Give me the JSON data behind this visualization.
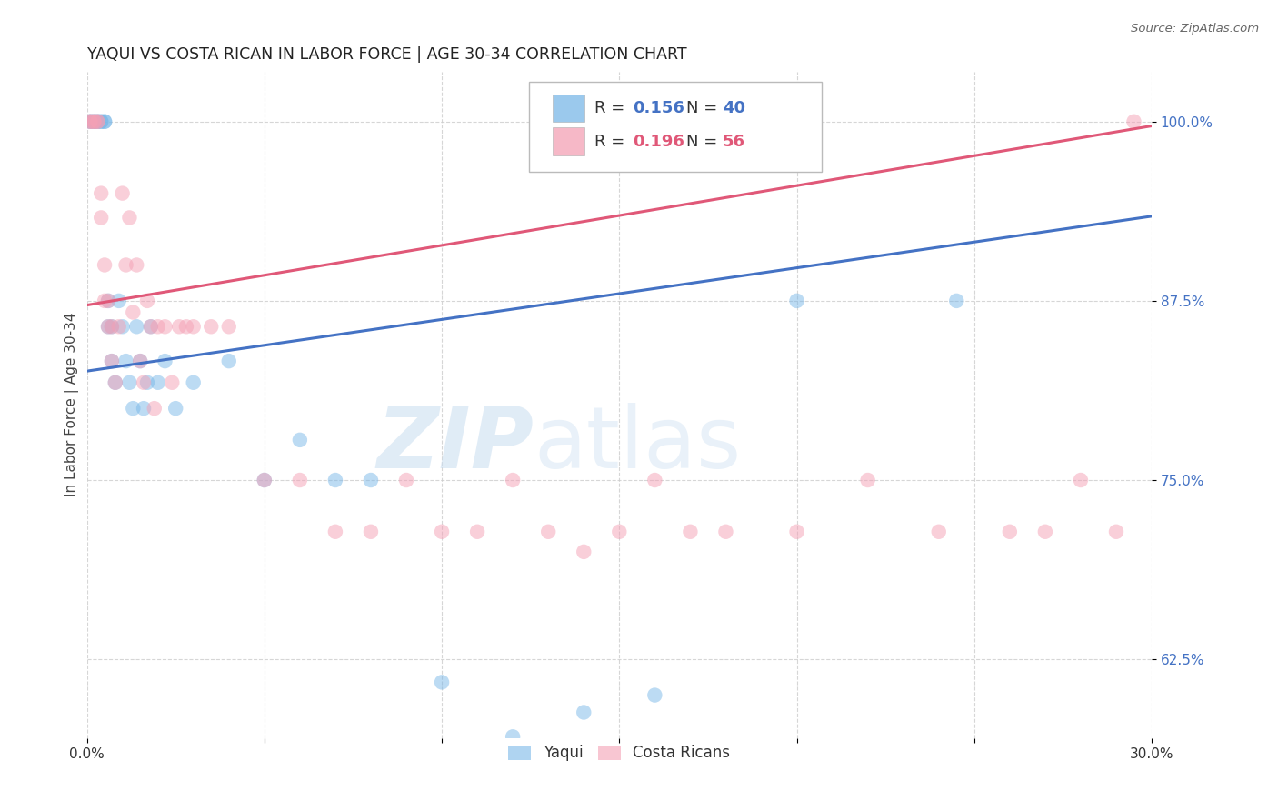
{
  "title": "YAQUI VS COSTA RICAN IN LABOR FORCE | AGE 30-34 CORRELATION CHART",
  "source": "Source: ZipAtlas.com",
  "ylabel_label": "In Labor Force | Age 30-34",
  "x_min": 0.0,
  "x_max": 0.3,
  "y_min": 0.57,
  "y_max": 1.035,
  "y_ticks": [
    0.625,
    0.75,
    0.875,
    1.0
  ],
  "y_tick_labels": [
    "62.5%",
    "75.0%",
    "87.5%",
    "100.0%"
  ],
  "yaqui_R": 0.156,
  "yaqui_N": 40,
  "costarican_R": 0.196,
  "costarican_N": 56,
  "yaqui_color": "#7ab8e8",
  "costarican_color": "#f4a0b5",
  "line_yaqui_color": "#4472c4",
  "line_costarican_color": "#e05878",
  "legend_label_yaqui": "Yaqui",
  "legend_label_costarican": "Costa Ricans",
  "yaqui_line_x0": 0.0,
  "yaqui_line_y0": 0.826,
  "yaqui_line_x1": 0.3,
  "yaqui_line_y1": 0.934,
  "cr_line_x0": 0.0,
  "cr_line_y0": 0.872,
  "cr_line_x1": 0.3,
  "cr_line_y1": 0.997,
  "yaqui_x": [
    0.001,
    0.001,
    0.002,
    0.002,
    0.003,
    0.003,
    0.004,
    0.004,
    0.005,
    0.005,
    0.006,
    0.006,
    0.007,
    0.007,
    0.008,
    0.009,
    0.01,
    0.011,
    0.012,
    0.013,
    0.014,
    0.015,
    0.016,
    0.017,
    0.018,
    0.02,
    0.022,
    0.025,
    0.03,
    0.04,
    0.05,
    0.06,
    0.07,
    0.08,
    0.1,
    0.12,
    0.14,
    0.16,
    0.2,
    0.245
  ],
  "yaqui_y": [
    1.0,
    1.0,
    1.0,
    1.0,
    1.0,
    1.0,
    1.0,
    1.0,
    1.0,
    1.0,
    0.875,
    0.857,
    0.857,
    0.833,
    0.818,
    0.875,
    0.857,
    0.833,
    0.818,
    0.8,
    0.857,
    0.833,
    0.8,
    0.818,
    0.857,
    0.818,
    0.833,
    0.8,
    0.818,
    0.833,
    0.75,
    0.778,
    0.75,
    0.75,
    0.609,
    0.571,
    0.588,
    0.6,
    0.875,
    0.875
  ],
  "cr_x": [
    0.001,
    0.001,
    0.002,
    0.002,
    0.003,
    0.003,
    0.004,
    0.004,
    0.005,
    0.005,
    0.006,
    0.006,
    0.007,
    0.007,
    0.008,
    0.009,
    0.01,
    0.011,
    0.012,
    0.013,
    0.014,
    0.015,
    0.016,
    0.017,
    0.018,
    0.019,
    0.02,
    0.022,
    0.024,
    0.026,
    0.028,
    0.03,
    0.035,
    0.04,
    0.05,
    0.06,
    0.07,
    0.08,
    0.09,
    0.1,
    0.11,
    0.12,
    0.13,
    0.14,
    0.15,
    0.16,
    0.17,
    0.18,
    0.2,
    0.22,
    0.24,
    0.26,
    0.27,
    0.28,
    0.29,
    0.295
  ],
  "cr_y": [
    1.0,
    1.0,
    1.0,
    1.0,
    1.0,
    1.0,
    0.95,
    0.933,
    0.9,
    0.875,
    0.875,
    0.857,
    0.857,
    0.833,
    0.818,
    0.857,
    0.95,
    0.9,
    0.933,
    0.867,
    0.9,
    0.833,
    0.818,
    0.875,
    0.857,
    0.8,
    0.857,
    0.857,
    0.818,
    0.857,
    0.857,
    0.857,
    0.857,
    0.857,
    0.75,
    0.75,
    0.714,
    0.714,
    0.75,
    0.714,
    0.714,
    0.75,
    0.714,
    0.7,
    0.714,
    0.75,
    0.714,
    0.714,
    0.714,
    0.75,
    0.714,
    0.714,
    0.714,
    0.75,
    0.714,
    1.0
  ]
}
